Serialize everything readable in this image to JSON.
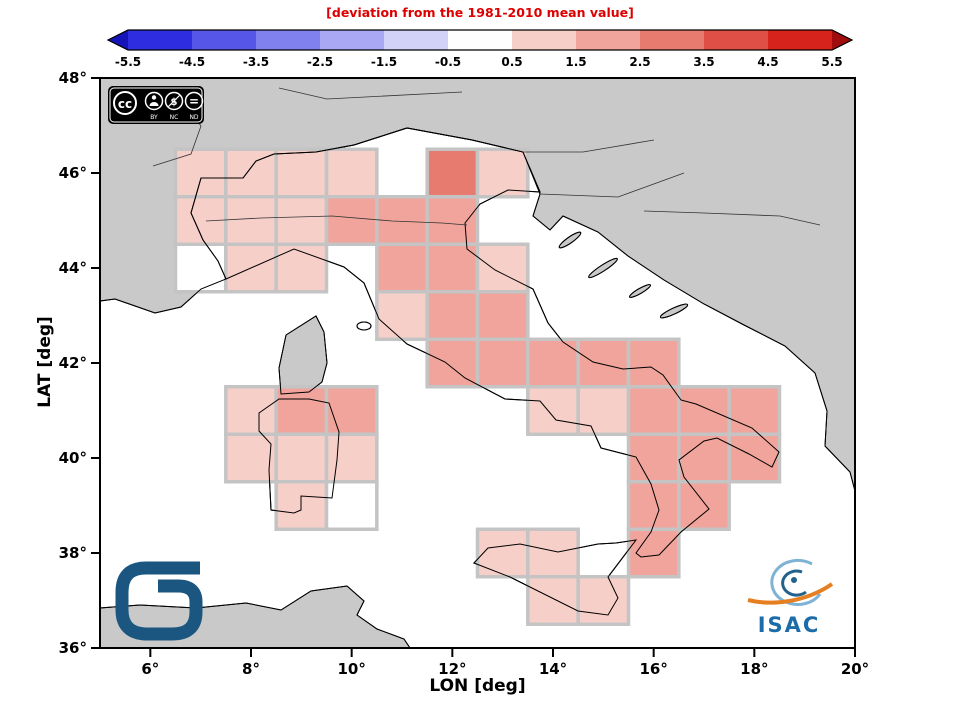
{
  "license_badge": {
    "cc_text": "cc",
    "nc_glyph": "$",
    "nd_glyph": "=",
    "labels": [
      "BY",
      "NC",
      "ND"
    ]
  },
  "logos": {
    "isac_text": "ISAC"
  },
  "colors": {
    "title": "#dd0000",
    "land": "#c9c9c9",
    "sea": "#ffffff",
    "cell_border": "#c4c4c4",
    "frame": "#000000",
    "isac_blue": "#1b6ca8",
    "cnr_blue": "#1a567f",
    "isac_orange": "#e67e22"
  },
  "chart_data": {
    "type": "heatmap",
    "title": "[deviation from the 1981-2010 mean value]",
    "xlabel": "LON [deg]",
    "ylabel": "LAT [deg]",
    "lon_range": [
      5,
      20
    ],
    "lat_range": [
      36,
      48
    ],
    "x_tick_values": [
      6,
      8,
      10,
      12,
      14,
      16,
      18,
      20
    ],
    "x_tick_labels": [
      "6°",
      "8°",
      "10°",
      "12°",
      "14°",
      "16°",
      "18°",
      "20°"
    ],
    "y_tick_values": [
      48,
      46,
      44,
      42,
      40,
      38,
      36
    ],
    "y_tick_labels": [
      "48°",
      "46°",
      "44°",
      "42°",
      "40°",
      "38°",
      "36°"
    ],
    "cell_size_deg": 1,
    "colorbar": {
      "tick_labels": [
        "-5.5",
        "-4.5",
        "-3.5",
        "-2.5",
        "-1.5",
        "-0.5",
        "0.5",
        "1.5",
        "2.5",
        "3.5",
        "4.5",
        "5.5"
      ],
      "tick_values": [
        -5.5,
        -4.5,
        -3.5,
        -2.5,
        -1.5,
        -0.5,
        0.5,
        1.5,
        2.5,
        3.5,
        4.5,
        5.5
      ],
      "segment_colors": [
        "#2e2ee0",
        "#5656e8",
        "#8080ee",
        "#a8a8f4",
        "#d2d2f9",
        "#ffffff",
        "#f7cfc9",
        "#f0a49b",
        "#e87b70",
        "#e04f45",
        "#d6241c"
      ],
      "arrow_left_color": "#1414b8",
      "arrow_right_color": "#a00d0d"
    },
    "cells": [
      [
        7,
        46,
        1.0
      ],
      [
        8,
        46,
        0.9
      ],
      [
        9,
        46,
        1.1
      ],
      [
        10,
        46,
        1.3
      ],
      [
        12,
        46,
        2.6
      ],
      [
        13,
        46,
        1.0
      ],
      [
        7,
        45,
        1.1
      ],
      [
        8,
        45,
        1.2
      ],
      [
        9,
        45,
        1.4
      ],
      [
        10,
        45,
        1.8
      ],
      [
        11,
        45,
        1.6
      ],
      [
        12,
        45,
        1.7
      ],
      [
        7,
        44,
        0.2
      ],
      [
        8,
        44,
        1.0
      ],
      [
        9,
        44,
        1.2
      ],
      [
        11,
        44,
        1.8
      ],
      [
        12,
        44,
        1.6
      ],
      [
        13,
        44,
        1.3
      ],
      [
        11,
        43,
        1.4
      ],
      [
        12,
        43,
        1.9
      ],
      [
        13,
        43,
        1.7
      ],
      [
        12,
        42,
        1.8
      ],
      [
        13,
        42,
        1.8
      ],
      [
        14,
        42,
        1.8
      ],
      [
        15,
        42,
        1.9
      ],
      [
        16,
        42,
        1.9
      ],
      [
        8,
        41,
        1.1
      ],
      [
        9,
        41,
        1.9
      ],
      [
        10,
        41,
        1.9
      ],
      [
        14,
        41,
        1.4
      ],
      [
        15,
        41,
        0.7
      ],
      [
        16,
        41,
        2.0
      ],
      [
        17,
        41,
        1.8
      ],
      [
        18,
        41,
        1.9
      ],
      [
        8,
        40,
        1.1
      ],
      [
        9,
        40,
        1.3
      ],
      [
        10,
        40,
        1.2
      ],
      [
        16,
        40,
        1.9
      ],
      [
        17,
        40,
        1.8
      ],
      [
        18,
        40,
        1.8
      ],
      [
        9,
        39,
        0.8
      ],
      [
        10,
        39,
        0.2
      ],
      [
        16,
        39,
        1.8
      ],
      [
        17,
        39,
        1.9
      ],
      [
        13,
        38,
        1.0
      ],
      [
        14,
        38,
        1.1
      ],
      [
        16,
        38,
        1.6
      ],
      [
        14,
        37,
        1.0
      ],
      [
        15,
        37,
        1.2
      ]
    ]
  }
}
